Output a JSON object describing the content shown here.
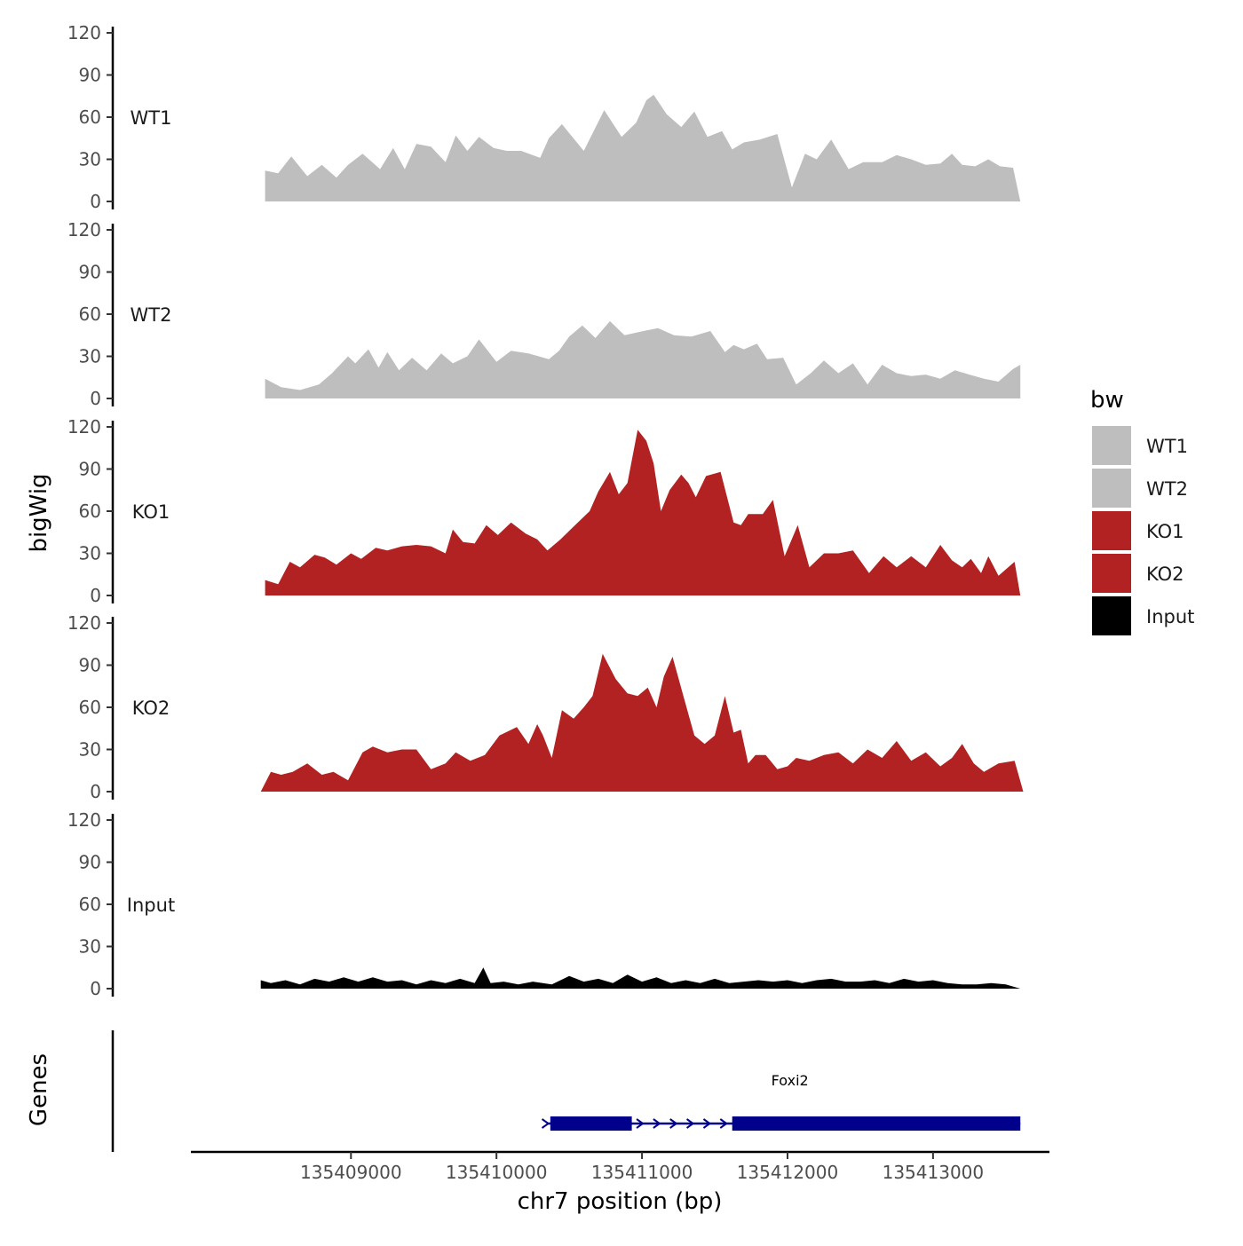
{
  "chart_data": {
    "type": "area",
    "ylabel": "bigWig",
    "xlabel": "chr7 position (bp)",
    "genes_label": "Genes",
    "ylim": [
      0,
      120
    ],
    "yticks": [
      0,
      30,
      60,
      90,
      120
    ],
    "xlim": [
      135407900,
      135413800
    ],
    "xticks": [
      135409000,
      135410000,
      135411000,
      135412000,
      135413000
    ],
    "xtick_labels": [
      "135409000",
      "135410000",
      "135411000",
      "135412000",
      "135413000"
    ],
    "legend": {
      "title": "bw",
      "items": [
        {
          "label": "WT1",
          "color": "#bebebe"
        },
        {
          "label": "WT2",
          "color": "#bebebe"
        },
        {
          "label": "KO1",
          "color": "#b22222"
        },
        {
          "label": "KO2",
          "color": "#b22222"
        },
        {
          "label": "Input",
          "color": "#000000"
        }
      ]
    },
    "tracks": [
      {
        "name": "WT1",
        "color": "#bebebe",
        "x": [
          135408410,
          135408500,
          135408590,
          135408700,
          135408800,
          135408900,
          135408980,
          135409080,
          135409200,
          135409290,
          135409370,
          135409450,
          135409550,
          135409650,
          135409720,
          135409800,
          135409880,
          135409980,
          135410070,
          135410170,
          135410300,
          135410360,
          135410450,
          135410600,
          135410740,
          135410860,
          135410960,
          135411030,
          135411080,
          135411170,
          135411270,
          135411360,
          135411450,
          135411550,
          135411620,
          135411700,
          135411810,
          135411930,
          135412030,
          135412120,
          135412200,
          135412300,
          135412420,
          135412520,
          135412650,
          135412750,
          135412850,
          135412950,
          135413050,
          135413130,
          135413200,
          135413290,
          135413380,
          135413460,
          135413550,
          135413600
        ],
        "values": [
          22,
          20,
          32,
          18,
          26,
          17,
          26,
          34,
          23,
          38,
          23,
          41,
          39,
          28,
          47,
          36,
          46,
          38,
          36,
          36,
          31,
          45,
          55,
          36,
          65,
          46,
          56,
          72,
          76,
          62,
          53,
          64,
          46,
          50,
          37,
          42,
          44,
          48,
          10,
          34,
          30,
          44,
          23,
          28,
          28,
          33,
          30,
          26,
          27,
          34,
          26,
          25,
          30,
          25,
          24,
          0
        ]
      },
      {
        "name": "WT2",
        "color": "#bebebe",
        "x": [
          135408410,
          135408520,
          135408650,
          135408780,
          135408870,
          135408980,
          135409030,
          135409120,
          135409190,
          135409250,
          135409330,
          135409420,
          135409520,
          135409620,
          135409700,
          135409800,
          135409880,
          135410000,
          135410100,
          135410220,
          135410360,
          135410430,
          135410500,
          135410590,
          135410680,
          135410780,
          135410880,
          135411010,
          135411110,
          135411220,
          135411340,
          135411470,
          135411570,
          135411630,
          135411700,
          135411790,
          135411860,
          135411970,
          135412060,
          135412160,
          135412250,
          135412350,
          135412450,
          135412550,
          135412650,
          135412750,
          135412850,
          135412950,
          135413050,
          135413150,
          135413250,
          135413350,
          135413450,
          135413550,
          135413600
        ],
        "values": [
          14,
          8,
          6,
          10,
          18,
          30,
          25,
          35,
          22,
          33,
          20,
          29,
          20,
          32,
          25,
          30,
          42,
          26,
          34,
          32,
          28,
          34,
          44,
          52,
          43,
          55,
          45,
          48,
          50,
          45,
          44,
          48,
          33,
          38,
          35,
          39,
          28,
          29,
          10,
          18,
          27,
          18,
          25,
          10,
          24,
          18,
          16,
          17,
          14,
          20,
          17,
          14,
          12,
          21,
          24
        ]
      },
      {
        "name": "KO1",
        "color": "#b22222",
        "x": [
          135408410,
          135408500,
          135408580,
          135408650,
          135408750,
          135408820,
          135408900,
          135409000,
          135409070,
          135409170,
          135409250,
          135409350,
          135409450,
          135409550,
          135409650,
          135409700,
          135409770,
          135409850,
          135409930,
          135410010,
          135410100,
          135410200,
          135410280,
          135410350,
          135410440,
          135410540,
          135410640,
          135410700,
          135410780,
          135410840,
          135410900,
          135410970,
          135411030,
          135411080,
          135411130,
          135411190,
          135411270,
          135411320,
          135411370,
          135411440,
          135411540,
          135411630,
          135411680,
          135411730,
          135411830,
          135411900,
          135411980,
          135412070,
          135412150,
          135412250,
          135412350,
          135412450,
          135412560,
          135412660,
          135412750,
          135412850,
          135412950,
          135413050,
          135413130,
          135413200,
          135413260,
          135413330,
          135413380,
          135413450,
          135413560,
          135413600
        ],
        "values": [
          11,
          8,
          24,
          20,
          29,
          27,
          22,
          30,
          26,
          34,
          32,
          35,
          36,
          35,
          30,
          47,
          38,
          37,
          50,
          43,
          52,
          44,
          40,
          32,
          40,
          50,
          60,
          74,
          88,
          72,
          80,
          118,
          110,
          94,
          60,
          75,
          86,
          80,
          70,
          85,
          88,
          52,
          50,
          58,
          58,
          68,
          28,
          50,
          20,
          30,
          30,
          32,
          16,
          28,
          20,
          28,
          20,
          36,
          25,
          20,
          26,
          16,
          28,
          14,
          24,
          0
        ]
      },
      {
        "name": "KO2",
        "color": "#b22222",
        "x": [
          135408380,
          135408450,
          135408520,
          135408600,
          135408700,
          135408800,
          135408880,
          135408980,
          135409080,
          135409150,
          135409250,
          135409350,
          135409450,
          135409550,
          135409650,
          135409720,
          135409820,
          135409920,
          135410020,
          135410140,
          135410220,
          135410280,
          135410320,
          135410380,
          135410450,
          135410530,
          135410600,
          135410660,
          135410730,
          135410820,
          135410900,
          135410970,
          135411040,
          135411100,
          135411150,
          135411210,
          135411290,
          135411360,
          135411430,
          135411500,
          135411570,
          135411630,
          135411680,
          135411730,
          135411780,
          135411850,
          135411930,
          135412000,
          135412060,
          135412150,
          135412250,
          135412350,
          135412450,
          135412550,
          135412650,
          135412750,
          135412850,
          135412950,
          135413050,
          135413130,
          135413200,
          135413280,
          135413350,
          135413450,
          135413560,
          135413620
        ],
        "values": [
          0,
          14,
          12,
          14,
          20,
          12,
          14,
          8,
          28,
          32,
          28,
          30,
          30,
          16,
          20,
          28,
          22,
          26,
          40,
          46,
          34,
          48,
          40,
          24,
          58,
          52,
          60,
          68,
          98,
          80,
          70,
          68,
          74,
          60,
          82,
          96,
          66,
          40,
          34,
          40,
          68,
          42,
          44,
          20,
          26,
          26,
          16,
          18,
          24,
          22,
          26,
          28,
          20,
          30,
          24,
          36,
          22,
          28,
          18,
          24,
          34,
          20,
          14,
          20,
          22,
          0
        ]
      },
      {
        "name": "Input",
        "color": "#000000",
        "x": [
          135408380,
          135408450,
          135408550,
          135408650,
          135408750,
          135408850,
          135408950,
          135409050,
          135409150,
          135409250,
          135409350,
          135409450,
          135409550,
          135409650,
          135409750,
          135409850,
          135409910,
          135409960,
          135410050,
          135410150,
          135410250,
          135410380,
          135410500,
          135410600,
          135410700,
          135410800,
          135410900,
          135411000,
          135411100,
          135411200,
          135411300,
          135411400,
          135411500,
          135411600,
          135411700,
          135411800,
          135411900,
          135412000,
          135412100,
          135412200,
          135412300,
          135412400,
          135412500,
          135412600,
          135412700,
          135412800,
          135412900,
          135413000,
          135413100,
          135413200,
          135413300,
          135413400,
          135413500,
          135413600
        ],
        "values": [
          6,
          4,
          6,
          3,
          7,
          5,
          8,
          5,
          8,
          5,
          6,
          3,
          6,
          4,
          7,
          4,
          15,
          4,
          5,
          3,
          5,
          3,
          9,
          5,
          7,
          4,
          10,
          5,
          8,
          4,
          6,
          4,
          7,
          4,
          5,
          6,
          5,
          6,
          4,
          6,
          7,
          5,
          5,
          6,
          4,
          7,
          5,
          6,
          4,
          3,
          3,
          4,
          3,
          0
        ]
      }
    ],
    "genes": [
      {
        "name": "Foxi2",
        "strand": "+",
        "start": 135410350,
        "end": 135413600,
        "exons": [
          [
            135410370,
            135410930
          ],
          [
            135411620,
            135413600
          ]
        ]
      }
    ]
  }
}
